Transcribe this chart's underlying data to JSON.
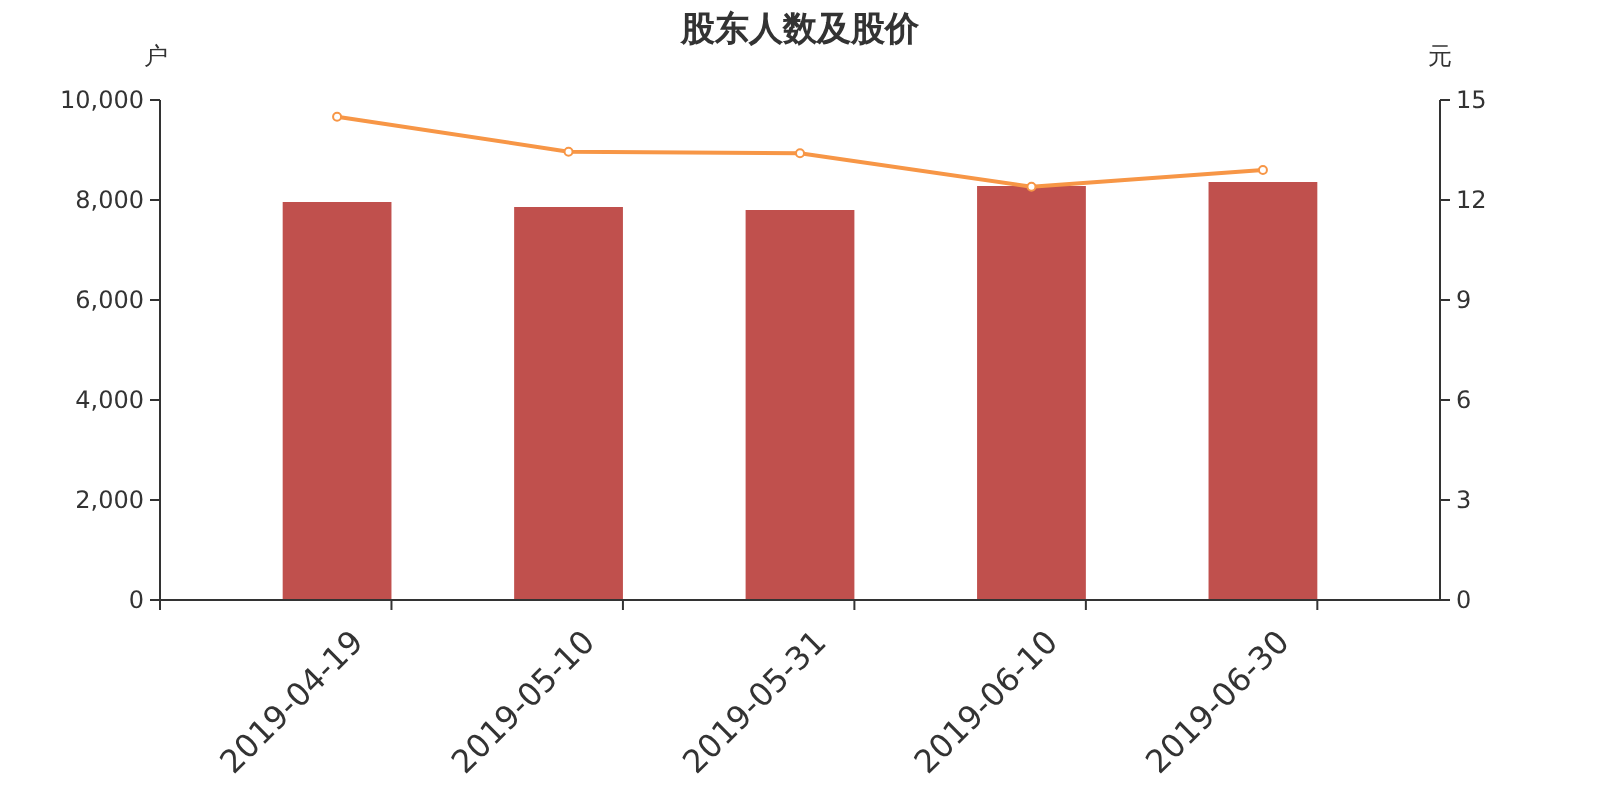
{
  "chart_data": {
    "type": "bar",
    "title": "股东人数及股价",
    "ylabel": "户",
    "y2label": "元",
    "categories": [
      "2019-04-19",
      "2019-05-10",
      "2019-05-31",
      "2019-06-10",
      "2019-06-30"
    ],
    "series": [
      {
        "color": "#c0504d",
        "values": [
          7960,
          7860,
          7800,
          8280,
          8360
        ]
      },
      {
        "type": "line",
        "axis": "y2",
        "color": "#f79646",
        "marker": "circle",
        "values": [
          14.5,
          13.45,
          13.4,
          12.4,
          12.9
        ]
      }
    ],
    "ylim": [
      0,
      10000
    ],
    "yticks": [
      {
        "value": 0,
        "label": "0"
      },
      {
        "value": 2000,
        "label": "2,000"
      },
      {
        "value": 4000,
        "label": "4,000"
      },
      {
        "value": 6000,
        "label": "6,000"
      },
      {
        "value": 8000,
        "label": "8,000"
      },
      {
        "value": 10000,
        "label": "10,000"
      }
    ],
    "y2lim": [
      0,
      15
    ],
    "y2ticks": [
      0,
      3,
      6,
      9,
      12,
      15
    ],
    "grid": false
  }
}
